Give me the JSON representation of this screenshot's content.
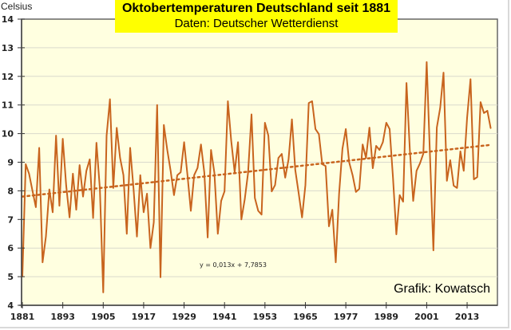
{
  "chart_data": {
    "type": "line",
    "title": "Oktobertemperaturen Deutschland seit 1881",
    "subtitle": "Daten: Deutscher Wetterdienst",
    "ylabel": "Celsius",
    "xlabel": "",
    "credit": "Grafik: Kowatsch",
    "trendline_label": "y = 0,013x + 7,7853",
    "trendline": {
      "slope": 0.013,
      "intercept": 7.7853
    },
    "ylim": [
      4,
      14
    ],
    "xlim": [
      1881,
      2020
    ],
    "yticks": [
      "4",
      "5",
      "6",
      "7",
      "8",
      "9",
      "10",
      "11",
      "12",
      "13",
      "14"
    ],
    "xticks": [
      "1881",
      "1893",
      "1905",
      "1917",
      "1929",
      "1941",
      "1953",
      "1965",
      "1977",
      "1989",
      "2001",
      "2013"
    ],
    "grid": true,
    "colors": {
      "series": "#c8641e",
      "plot_bg": "#ffffe0",
      "title_bg": "#ffff00",
      "grid": "#d9d9cc",
      "axis": "#555555"
    },
    "series": [
      {
        "name": "Oktobertemperatur",
        "start_year": 1881,
        "values": [
          5.0,
          8.93,
          8.6,
          8.0,
          7.43,
          9.5,
          5.5,
          6.4,
          8.05,
          7.25,
          9.93,
          7.48,
          9.82,
          8.18,
          7.07,
          8.6,
          7.34,
          8.9,
          7.8,
          8.7,
          9.1,
          7.05,
          9.68,
          8.07,
          4.45,
          9.93,
          11.2,
          8.1,
          10.2,
          9.15,
          8.55,
          6.5,
          9.5,
          8.05,
          6.4,
          8.55,
          7.25,
          7.9,
          6.0,
          6.9,
          11.0,
          4.98,
          10.3,
          9.43,
          8.7,
          7.85,
          8.55,
          8.65,
          9.7,
          8.55,
          7.3,
          8.55,
          8.8,
          9.62,
          8.63,
          6.37,
          9.43,
          8.63,
          6.5,
          7.65,
          7.98,
          11.13,
          9.74,
          8.65,
          9.7,
          7.0,
          7.7,
          8.63,
          10.67,
          7.75,
          7.3,
          7.17,
          10.38,
          9.93,
          7.98,
          8.2,
          9.15,
          9.29,
          8.46,
          9.1,
          10.5,
          8.73,
          7.93,
          7.07,
          8.2,
          11.07,
          11.13,
          10.16,
          9.98,
          8.93,
          8.87,
          6.76,
          7.34,
          5.5,
          7.9,
          9.47,
          10.16,
          9.0,
          8.55,
          7.96,
          8.07,
          9.62,
          9.15,
          10.21,
          8.79,
          9.57,
          9.43,
          9.7,
          10.38,
          10.16,
          8.46,
          6.48,
          7.85,
          7.62,
          11.77,
          9.43,
          7.65,
          8.7,
          8.96,
          9.3,
          12.5,
          9.18,
          5.92,
          10.21,
          10.9,
          12.13,
          8.35,
          9.07,
          8.18,
          8.1,
          9.38,
          8.7,
          10.55,
          11.9,
          8.4,
          8.48,
          11.1,
          10.72,
          10.8,
          10.18
        ]
      }
    ]
  }
}
